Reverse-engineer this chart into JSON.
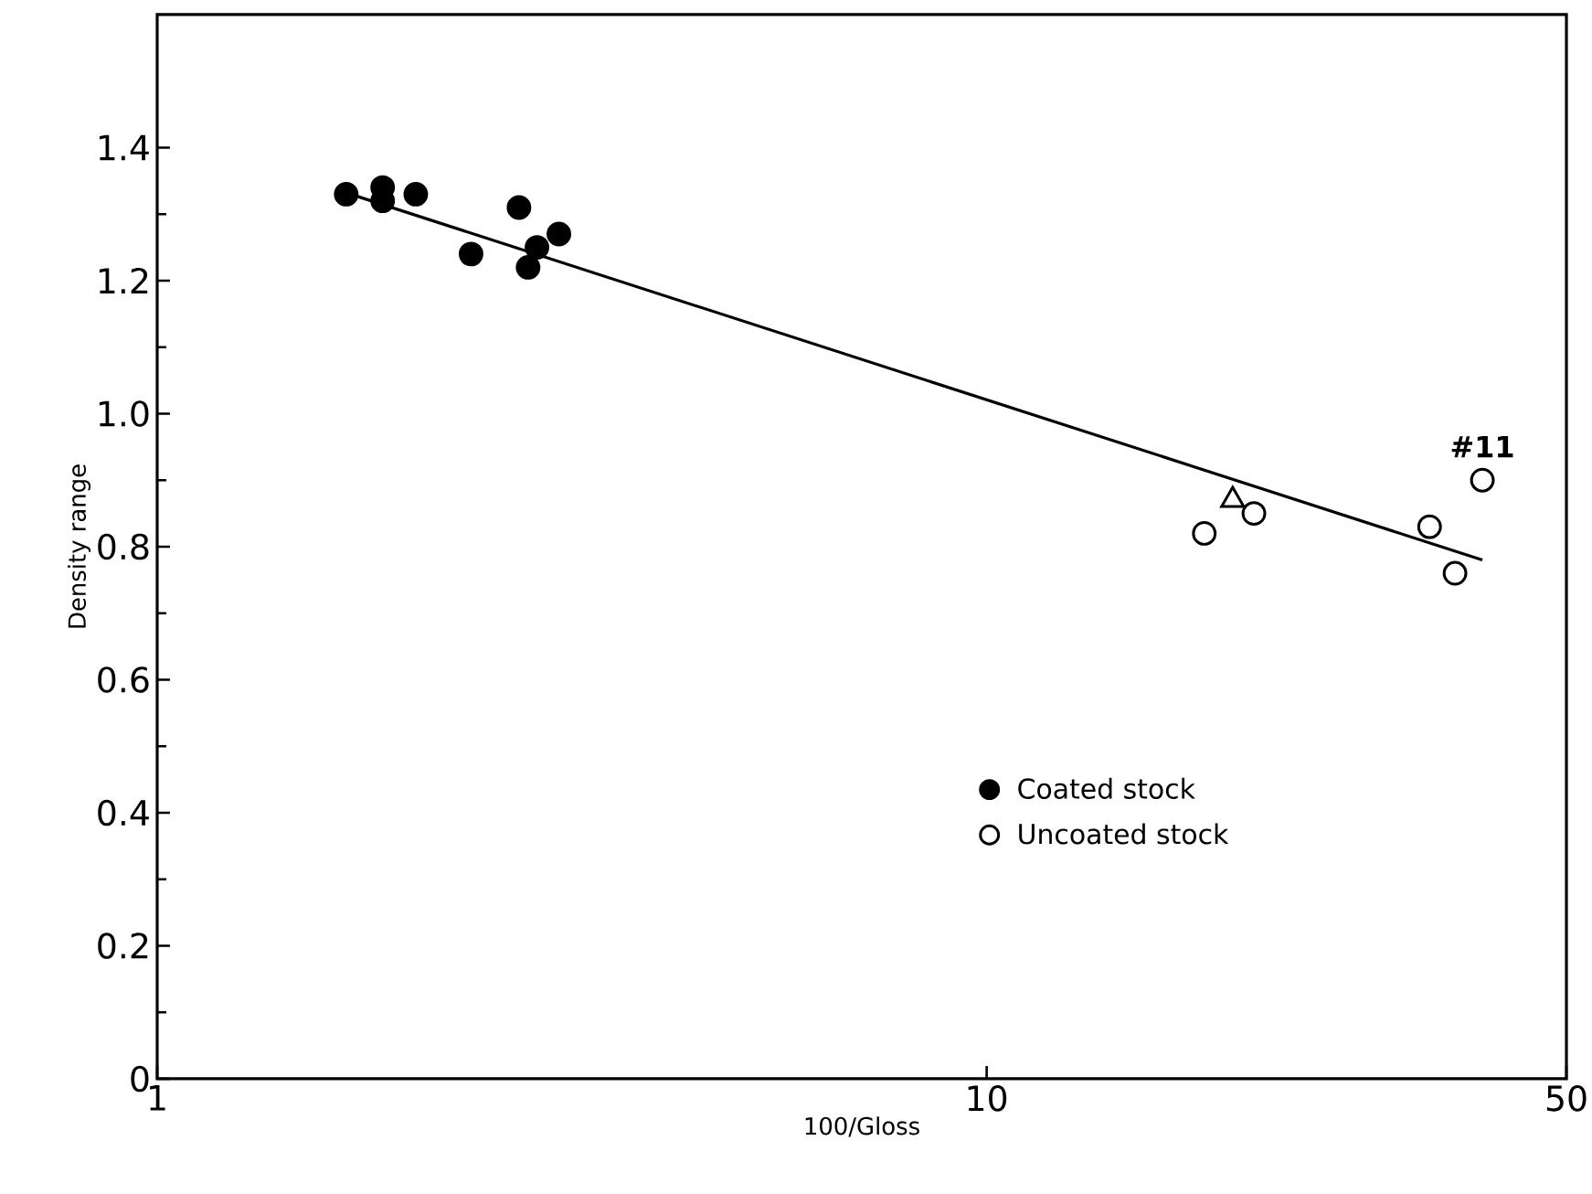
{
  "chart_data": {
    "type": "scatter",
    "xlabel": "100/Gloss",
    "ylabel": "Density range",
    "log": "x",
    "xlim": [
      1,
      50
    ],
    "xticks": [
      1,
      10,
      50
    ],
    "ylim": [
      0,
      1.6
    ],
    "yticks": [
      0,
      0.2,
      0.4,
      0.6,
      0.8,
      {
        "value": 1,
        "label": "1.0"
      },
      1.2,
      1.4
    ],
    "grid": false,
    "legend": "bottom right",
    "series": [
      {
        "name": "Coated stock",
        "color": "#000000",
        "marker": "circle",
        "x": [
          1.69,
          1.87,
          1.87,
          2.05,
          2.39,
          2.73,
          2.8,
          2.87,
          3.05
        ],
        "values": [
          1.33,
          1.34,
          1.32,
          1.33,
          1.24,
          1.31,
          1.22,
          1.25,
          1.27
        ]
      },
      {
        "name": "Uncoated stock",
        "color": "#000000",
        "marker": "circle",
        "x": [
          18.3,
          21.0,
          34.2,
          36.7,
          39.6
        ],
        "values": [
          0.82,
          0.85,
          0.83,
          0.76,
          0.9
        ]
      },
      {
        "color": "#000000",
        "marker": "triangle",
        "x": [
          19.8
        ],
        "values": [
          0.87
        ]
      },
      {
        "type": "line",
        "color": "#000000",
        "marker": "none",
        "x": [
          1.71,
          39.6
        ],
        "values": [
          1.33,
          0.78
        ]
      }
    ],
    "annotations": [
      {
        "text": "#11",
        "x": 39.6,
        "y": 0.9
      }
    ]
  }
}
